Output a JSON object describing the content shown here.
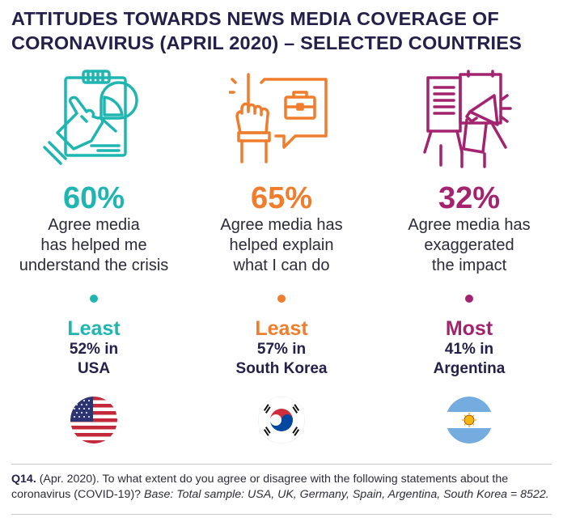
{
  "title": "ATTITUDES TOWARDS NEWS MEDIA COVERAGE OF CORONAVIRUS (APRIL 2020) – SELECTED COUNTRIES",
  "columns": [
    {
      "icon": "hand-pointing-chart-icon",
      "color": "#1fb6b2",
      "percent": "60%",
      "desc_lines": [
        "Agree media",
        "has helped me",
        "understand the crisis"
      ],
      "rank": "Least",
      "detail_lines": [
        "52% in",
        "USA"
      ],
      "flag": "usa-flag-icon"
    },
    {
      "icon": "hand-briefcase-speech-icon",
      "color": "#ef7d2d",
      "percent": "65%",
      "desc_lines": [
        "Agree media has",
        "helped explain",
        "what I can do"
      ],
      "rank": "Least",
      "detail_lines": [
        "57% in",
        "South Korea"
      ],
      "flag": "south-korea-flag-icon"
    },
    {
      "icon": "megaphone-board-icon",
      "color": "#a3236f",
      "percent": "32%",
      "desc_lines": [
        "Agree media has",
        "exaggerated",
        "the impact"
      ],
      "rank": "Most",
      "detail_lines": [
        "41% in",
        "Argentina"
      ],
      "flag": "argentina-flag-icon"
    }
  ],
  "footer": {
    "qid": "Q14.",
    "question": " (Apr. 2020). To what extent do you agree or disagree with the following statements about the coronavirus (COVID-19)? ",
    "base": "Base: Total sample: USA, UK, Germany, Spain, Argentina, South Korea = 8522."
  }
}
